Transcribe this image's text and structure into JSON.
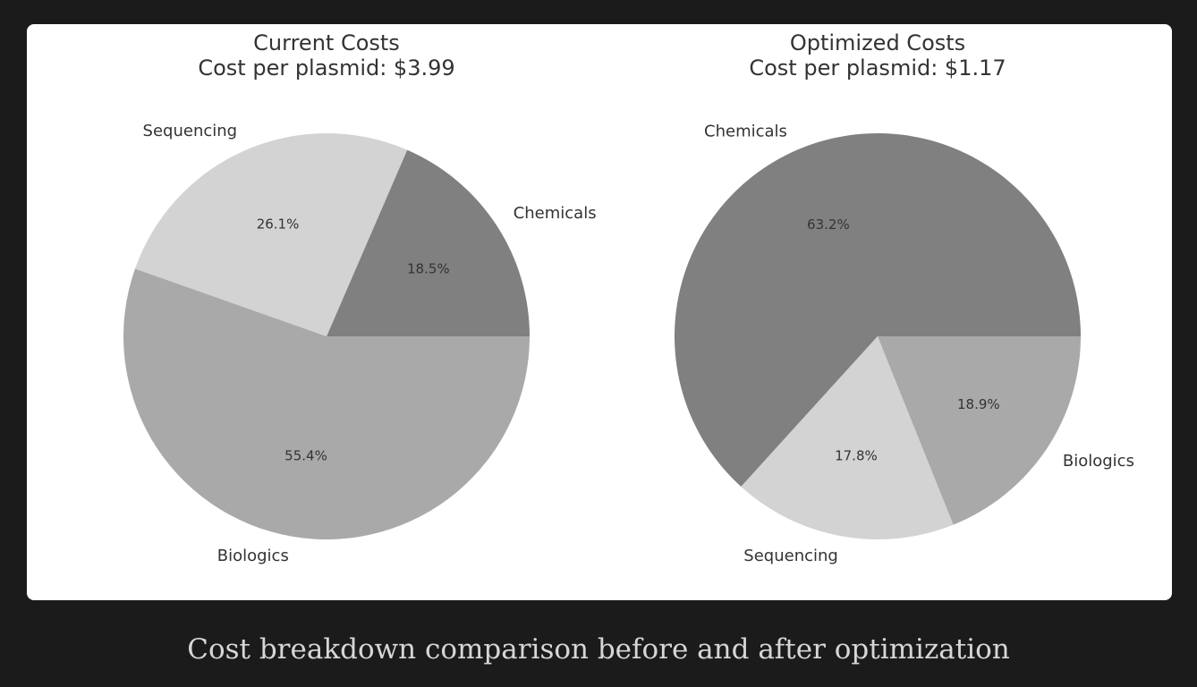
{
  "chart_data": [
    {
      "type": "pie",
      "title": "Current Costs",
      "subtitle": "Cost per plasmid: $3.99",
      "slices": [
        {
          "label": "Chemicals",
          "value": 18.5,
          "pct_label": "18.5%",
          "color": "#808080"
        },
        {
          "label": "Sequencing",
          "value": 26.1,
          "pct_label": "26.1%",
          "color": "#d3d3d3"
        },
        {
          "label": "Biologics",
          "value": 55.4,
          "pct_label": "55.4%",
          "color": "#a9a9a9"
        }
      ]
    },
    {
      "type": "pie",
      "title": "Optimized Costs",
      "subtitle": "Cost per plasmid: $1.17",
      "slices": [
        {
          "label": "Chemicals",
          "value": 63.2,
          "pct_label": "63.2%",
          "color": "#808080"
        },
        {
          "label": "Sequencing",
          "value": 17.8,
          "pct_label": "17.8%",
          "color": "#d3d3d3"
        },
        {
          "label": "Biologics",
          "value": 18.9,
          "pct_label": "18.9%",
          "color": "#a9a9a9"
        }
      ]
    }
  ],
  "caption": "Cost breakdown comparison before and after optimization"
}
